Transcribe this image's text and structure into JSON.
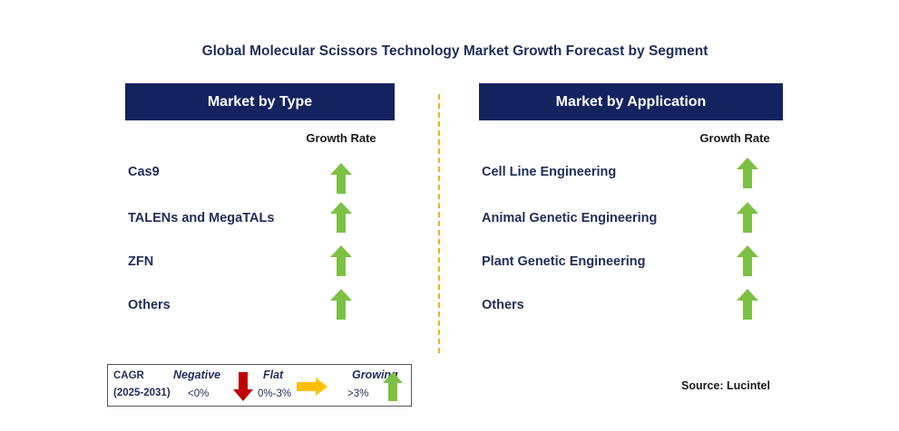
{
  "title": "Global Molecular Scissors Technology Market Growth Forecast by Segment",
  "left_panel": {
    "header": "Market by Type",
    "rate_label": "Growth Rate",
    "items": [
      {
        "label": "Cas9",
        "trend": "growing"
      },
      {
        "label": "TALENs and MegaTALs",
        "trend": "growing"
      },
      {
        "label": "ZFN",
        "trend": "growing"
      },
      {
        "label": "Others",
        "trend": "growing"
      }
    ]
  },
  "right_panel": {
    "header": "Market by Application",
    "rate_label": "Growth Rate",
    "items": [
      {
        "label": "Cell Line Engineering",
        "trend": "growing"
      },
      {
        "label": "Animal Genetic Engineering",
        "trend": "growing"
      },
      {
        "label": "Plant Genetic Engineering",
        "trend": "growing"
      },
      {
        "label": "Others",
        "trend": "growing"
      }
    ]
  },
  "legend": {
    "cagr_label": "CAGR",
    "period": "(2025-2031)",
    "negative_label": "Negative",
    "negative_range": "<0%",
    "flat_label": "Flat",
    "flat_range": "0%-3%",
    "growing_label": "Growing",
    "growing_range": ">3%"
  },
  "source": "Source: Lucintel",
  "colors": {
    "header_bg": "#14235f",
    "text": "#1f2d5a",
    "growing": "#7dc144",
    "negative": "#c00000",
    "flat": "#ffc000",
    "divider": "#f2b01e"
  },
  "icons": {
    "growing": "up-arrow-icon",
    "negative": "down-arrow-icon",
    "flat": "right-arrow-icon"
  }
}
